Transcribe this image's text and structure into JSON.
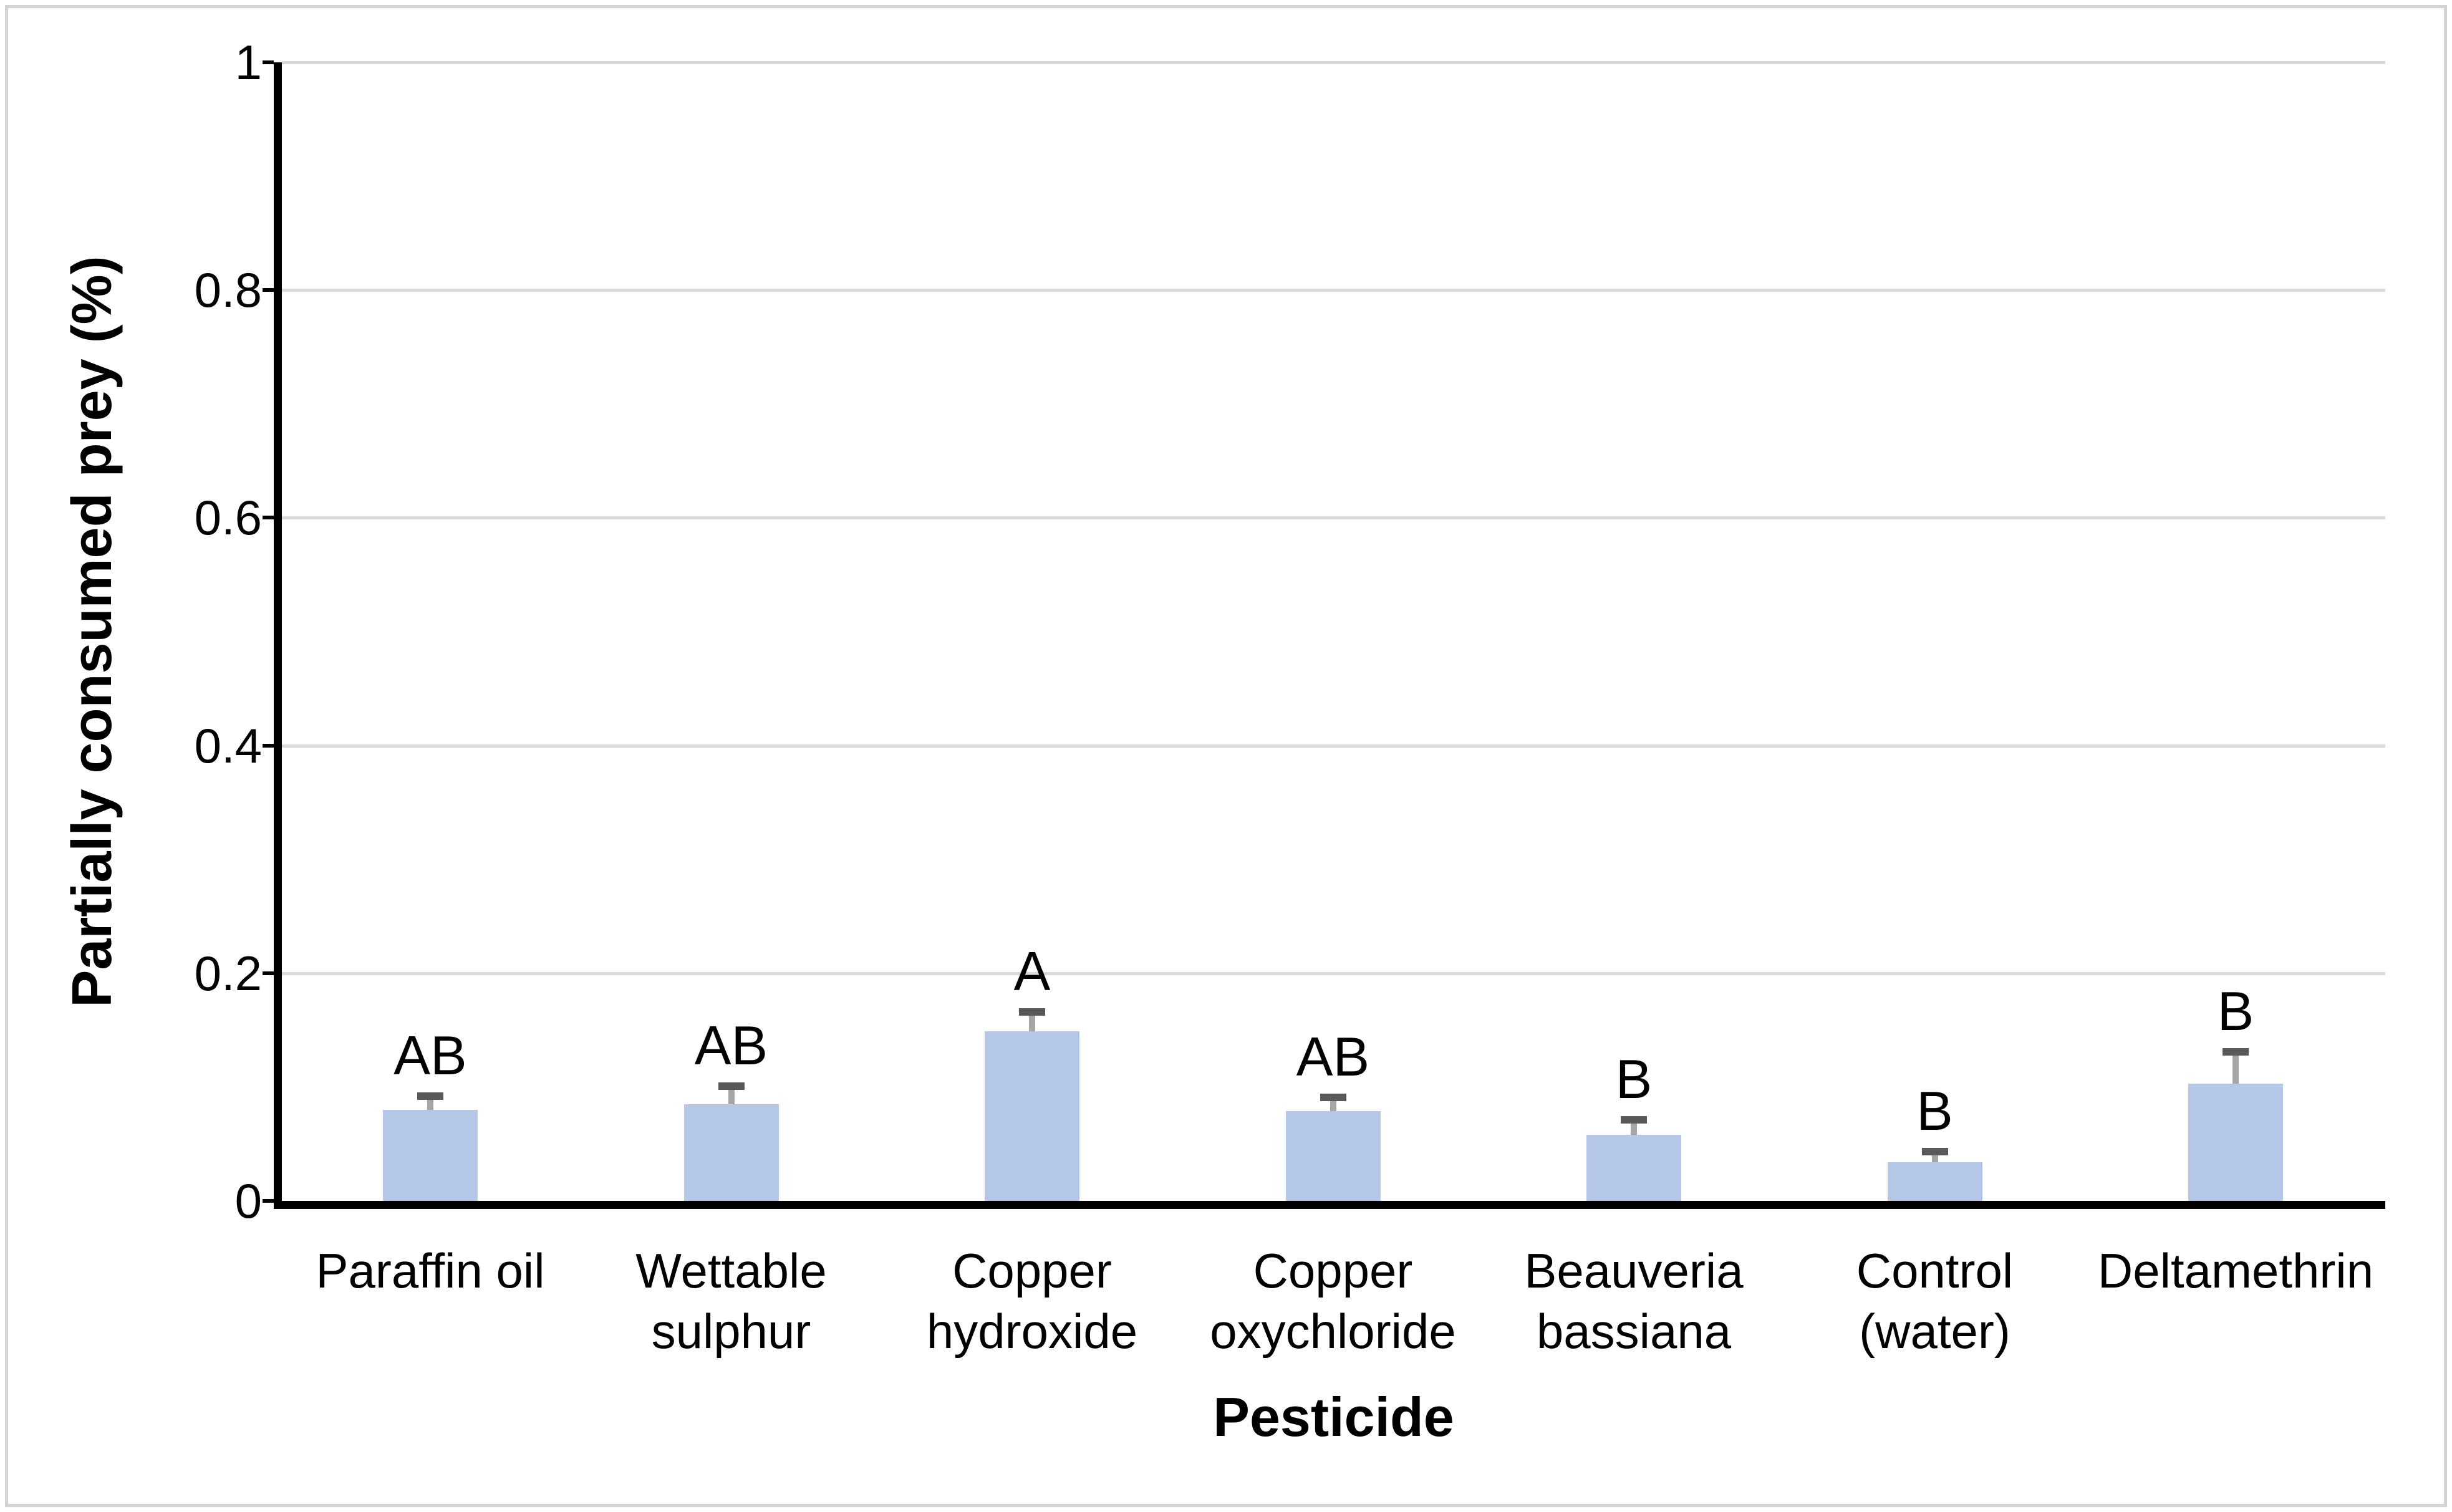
{
  "figure": {
    "background": "#ffffff",
    "border_color": "#d3d3d3"
  },
  "chart_data": {
    "type": "bar",
    "title": "",
    "xlabel": "Pesticide",
    "ylabel": "Partially consumed prey (%)",
    "ylim": [
      0,
      1
    ],
    "ytick_step": 0.2,
    "ytick_labels": [
      "0",
      "0.2",
      "0.4",
      "0.6",
      "0.8",
      "1"
    ],
    "grid": true,
    "legend": "none",
    "categories": [
      "Paraffin oil",
      "Wettable sulphur",
      "Copper hydroxide",
      "Copper oxychloride",
      "Beauveria bassiana",
      "Control (water)",
      "Deltamethrin"
    ],
    "series": [
      {
        "name": "Partially consumed prey",
        "values": [
          0.08,
          0.085,
          0.149,
          0.079,
          0.058,
          0.034,
          0.103
        ],
        "error_upper": [
          0.012,
          0.016,
          0.017,
          0.012,
          0.013,
          0.009,
          0.028
        ]
      }
    ],
    "sig_letters": [
      "AB",
      "AB",
      "A",
      "AB",
      "B",
      "B",
      "B"
    ],
    "bar_color": "#b4c7e7",
    "error_cap_color": "#595959",
    "error_line_color": "#a6a6a6",
    "gridline_color": "#d9d9d9",
    "axis_color": "#000000",
    "text_color": "#000000"
  }
}
